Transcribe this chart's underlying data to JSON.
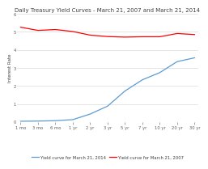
{
  "title": "Daily Treasury Yield Curves - March 21, 2007 and March 21, 2014",
  "xlabel": "",
  "ylabel": "Interest Rate",
  "x_labels": [
    "1 mo",
    "3 mo",
    "6 mo",
    "1 yr",
    "2 yr",
    "3 yr",
    "5 yr",
    "7 yr",
    "10 yr",
    "20 yr",
    "30 yr"
  ],
  "x_values": [
    0,
    1,
    2,
    3,
    4,
    5,
    6,
    7,
    8,
    9,
    10
  ],
  "march_2014": [
    0.04,
    0.05,
    0.07,
    0.13,
    0.44,
    0.88,
    1.72,
    2.34,
    2.74,
    3.35,
    3.56
  ],
  "march_2007": [
    5.26,
    5.08,
    5.13,
    5.02,
    4.82,
    4.74,
    4.71,
    4.73,
    4.73,
    4.91,
    4.85
  ],
  "color_2014": "#5b9bd5",
  "color_2007": "#ff0000",
  "legend_2014": "Yield curve for March 21, 2014",
  "legend_2007": "Yield curve for March 21, 2007",
  "ylim": [
    0,
    6
  ],
  "yticks": [
    0,
    1,
    2,
    3,
    4,
    5,
    6
  ],
  "background_color": "#ffffff",
  "grid_color": "#d9d9d9",
  "title_fontsize": 5.0,
  "axis_label_fontsize": 4.0,
  "tick_fontsize": 3.8,
  "legend_fontsize": 3.8,
  "linewidth": 0.9,
  "markersize": 0.0
}
